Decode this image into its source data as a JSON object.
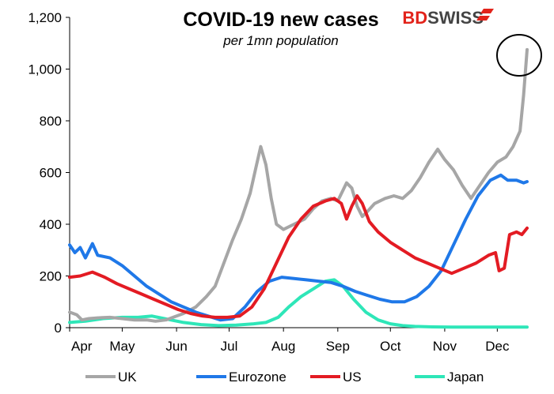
{
  "brand": {
    "part1": "BD",
    "part2": "SWISS"
  },
  "chart_data": {
    "type": "line",
    "title": "COVID-19  new cases",
    "subtitle": "per 1mn population",
    "xlabel": "",
    "ylabel": "",
    "ylim": [
      0,
      1200
    ],
    "yticks": [
      "0",
      "200",
      "400",
      "600",
      "800",
      "1,000",
      "1,200"
    ],
    "ytick_values": [
      0,
      200,
      400,
      600,
      800,
      1000,
      1200
    ],
    "x_ticks": [
      "Apr",
      "May",
      "Jun",
      "Jul",
      "Aug",
      "Sep",
      "Oct",
      "Nov",
      "Dec"
    ],
    "x_start": "2020-04-01",
    "x_end": "2020-12-18",
    "grid": false,
    "legend_position": "bottom",
    "annotation": "circle around latest UK value",
    "series": [
      {
        "name": "UK",
        "color": "#a6a6a6",
        "points": [
          [
            "2020-04-01",
            60
          ],
          [
            "2020-04-05",
            50
          ],
          [
            "2020-04-08",
            30
          ],
          [
            "2020-04-12",
            35
          ],
          [
            "2020-04-17",
            38
          ],
          [
            "2020-04-24",
            40
          ],
          [
            "2020-05-01",
            35
          ],
          [
            "2020-05-08",
            30
          ],
          [
            "2020-05-15",
            30
          ],
          [
            "2020-05-20",
            25
          ],
          [
            "2020-05-26",
            30
          ],
          [
            "2020-05-30",
            40
          ],
          [
            "2020-06-05",
            55
          ],
          [
            "2020-06-12",
            80
          ],
          [
            "2020-06-18",
            120
          ],
          [
            "2020-06-23",
            160
          ],
          [
            "2020-06-28",
            250
          ],
          [
            "2020-07-03",
            340
          ],
          [
            "2020-07-08",
            420
          ],
          [
            "2020-07-13",
            520
          ],
          [
            "2020-07-16",
            610
          ],
          [
            "2020-07-19",
            700
          ],
          [
            "2020-07-22",
            630
          ],
          [
            "2020-07-25",
            500
          ],
          [
            "2020-07-28",
            400
          ],
          [
            "2020-08-01",
            380
          ],
          [
            "2020-08-07",
            400
          ],
          [
            "2020-08-13",
            420
          ],
          [
            "2020-08-18",
            460
          ],
          [
            "2020-08-23",
            490
          ],
          [
            "2020-08-28",
            500
          ],
          [
            "2020-09-01",
            490
          ],
          [
            "2020-09-06",
            560
          ],
          [
            "2020-09-09",
            540
          ],
          [
            "2020-09-12",
            470
          ],
          [
            "2020-09-15",
            430
          ],
          [
            "2020-09-18",
            450
          ],
          [
            "2020-09-22",
            480
          ],
          [
            "2020-09-28",
            500
          ],
          [
            "2020-10-03",
            510
          ],
          [
            "2020-10-08",
            500
          ],
          [
            "2020-10-13",
            530
          ],
          [
            "2020-10-18",
            580
          ],
          [
            "2020-10-23",
            640
          ],
          [
            "2020-10-28",
            690
          ],
          [
            "2020-11-01",
            650
          ],
          [
            "2020-11-06",
            610
          ],
          [
            "2020-11-11",
            550
          ],
          [
            "2020-11-16",
            500
          ],
          [
            "2020-11-21",
            550
          ],
          [
            "2020-11-26",
            600
          ],
          [
            "2020-12-01",
            640
          ],
          [
            "2020-12-06",
            660
          ],
          [
            "2020-12-10",
            700
          ],
          [
            "2020-12-14",
            760
          ],
          [
            "2020-12-16",
            900
          ],
          [
            "2020-12-18",
            1075
          ]
        ]
      },
      {
        "name": "Eurozone",
        "color": "#1f78e8",
        "points": [
          [
            "2020-04-01",
            320
          ],
          [
            "2020-04-04",
            290
          ],
          [
            "2020-04-07",
            310
          ],
          [
            "2020-04-10",
            270
          ],
          [
            "2020-04-14",
            325
          ],
          [
            "2020-04-17",
            280
          ],
          [
            "2020-04-24",
            270
          ],
          [
            "2020-05-01",
            240
          ],
          [
            "2020-05-08",
            200
          ],
          [
            "2020-05-15",
            160
          ],
          [
            "2020-05-22",
            130
          ],
          [
            "2020-05-29",
            100
          ],
          [
            "2020-06-05",
            80
          ],
          [
            "2020-06-12",
            60
          ],
          [
            "2020-06-19",
            45
          ],
          [
            "2020-06-26",
            30
          ],
          [
            "2020-07-03",
            35
          ],
          [
            "2020-07-10",
            80
          ],
          [
            "2020-07-17",
            140
          ],
          [
            "2020-07-24",
            180
          ],
          [
            "2020-07-31",
            195
          ],
          [
            "2020-08-07",
            190
          ],
          [
            "2020-08-14",
            185
          ],
          [
            "2020-08-21",
            180
          ],
          [
            "2020-08-28",
            175
          ],
          [
            "2020-09-04",
            160
          ],
          [
            "2020-09-11",
            140
          ],
          [
            "2020-09-18",
            125
          ],
          [
            "2020-09-25",
            110
          ],
          [
            "2020-10-02",
            100
          ],
          [
            "2020-10-09",
            100
          ],
          [
            "2020-10-16",
            120
          ],
          [
            "2020-10-23",
            160
          ],
          [
            "2020-10-30",
            220
          ],
          [
            "2020-11-06",
            320
          ],
          [
            "2020-11-13",
            420
          ],
          [
            "2020-11-20",
            510
          ],
          [
            "2020-11-27",
            570
          ],
          [
            "2020-12-03",
            590
          ],
          [
            "2020-12-07",
            570
          ],
          [
            "2020-12-12",
            570
          ],
          [
            "2020-12-16",
            560
          ],
          [
            "2020-12-18",
            565
          ]
        ]
      },
      {
        "name": "US",
        "color": "#e31b23",
        "points": [
          [
            "2020-04-01",
            195
          ],
          [
            "2020-04-07",
            200
          ],
          [
            "2020-04-14",
            215
          ],
          [
            "2020-04-21",
            195
          ],
          [
            "2020-04-28",
            170
          ],
          [
            "2020-05-05",
            150
          ],
          [
            "2020-05-12",
            130
          ],
          [
            "2020-05-19",
            110
          ],
          [
            "2020-05-26",
            90
          ],
          [
            "2020-06-02",
            70
          ],
          [
            "2020-06-09",
            55
          ],
          [
            "2020-06-16",
            45
          ],
          [
            "2020-06-23",
            40
          ],
          [
            "2020-06-30",
            40
          ],
          [
            "2020-07-07",
            45
          ],
          [
            "2020-07-14",
            80
          ],
          [
            "2020-07-21",
            150
          ],
          [
            "2020-07-28",
            250
          ],
          [
            "2020-08-04",
            350
          ],
          [
            "2020-08-11",
            420
          ],
          [
            "2020-08-18",
            470
          ],
          [
            "2020-08-25",
            490
          ],
          [
            "2020-08-30",
            500
          ],
          [
            "2020-09-03",
            480
          ],
          [
            "2020-09-06",
            420
          ],
          [
            "2020-09-09",
            470
          ],
          [
            "2020-09-12",
            510
          ],
          [
            "2020-09-15",
            480
          ],
          [
            "2020-09-19",
            410
          ],
          [
            "2020-09-24",
            370
          ],
          [
            "2020-10-01",
            330
          ],
          [
            "2020-10-08",
            300
          ],
          [
            "2020-10-15",
            270
          ],
          [
            "2020-10-22",
            250
          ],
          [
            "2020-10-29",
            230
          ],
          [
            "2020-11-05",
            210
          ],
          [
            "2020-11-12",
            230
          ],
          [
            "2020-11-19",
            250
          ],
          [
            "2020-11-26",
            280
          ],
          [
            "2020-11-30",
            290
          ],
          [
            "2020-12-02",
            220
          ],
          [
            "2020-12-05",
            230
          ],
          [
            "2020-12-08",
            360
          ],
          [
            "2020-12-12",
            370
          ],
          [
            "2020-12-15",
            360
          ],
          [
            "2020-12-18",
            385
          ]
        ]
      },
      {
        "name": "Japan",
        "color": "#2ee6b8",
        "points": [
          [
            "2020-04-01",
            20
          ],
          [
            "2020-04-10",
            25
          ],
          [
            "2020-04-20",
            35
          ],
          [
            "2020-05-01",
            40
          ],
          [
            "2020-05-10",
            40
          ],
          [
            "2020-05-18",
            45
          ],
          [
            "2020-05-25",
            35
          ],
          [
            "2020-06-05",
            20
          ],
          [
            "2020-06-15",
            12
          ],
          [
            "2020-06-25",
            8
          ],
          [
            "2020-07-05",
            10
          ],
          [
            "2020-07-15",
            15
          ],
          [
            "2020-07-22",
            20
          ],
          [
            "2020-07-29",
            40
          ],
          [
            "2020-08-04",
            80
          ],
          [
            "2020-08-11",
            120
          ],
          [
            "2020-08-18",
            150
          ],
          [
            "2020-08-25",
            180
          ],
          [
            "2020-08-30",
            185
          ],
          [
            "2020-09-04",
            160
          ],
          [
            "2020-09-10",
            110
          ],
          [
            "2020-09-17",
            60
          ],
          [
            "2020-09-24",
            30
          ],
          [
            "2020-10-01",
            15
          ],
          [
            "2020-10-08",
            8
          ],
          [
            "2020-10-15",
            5
          ],
          [
            "2020-10-25",
            3
          ],
          [
            "2020-11-05",
            2
          ],
          [
            "2020-11-20",
            2
          ],
          [
            "2020-12-05",
            2
          ],
          [
            "2020-12-18",
            2
          ]
        ]
      }
    ]
  }
}
